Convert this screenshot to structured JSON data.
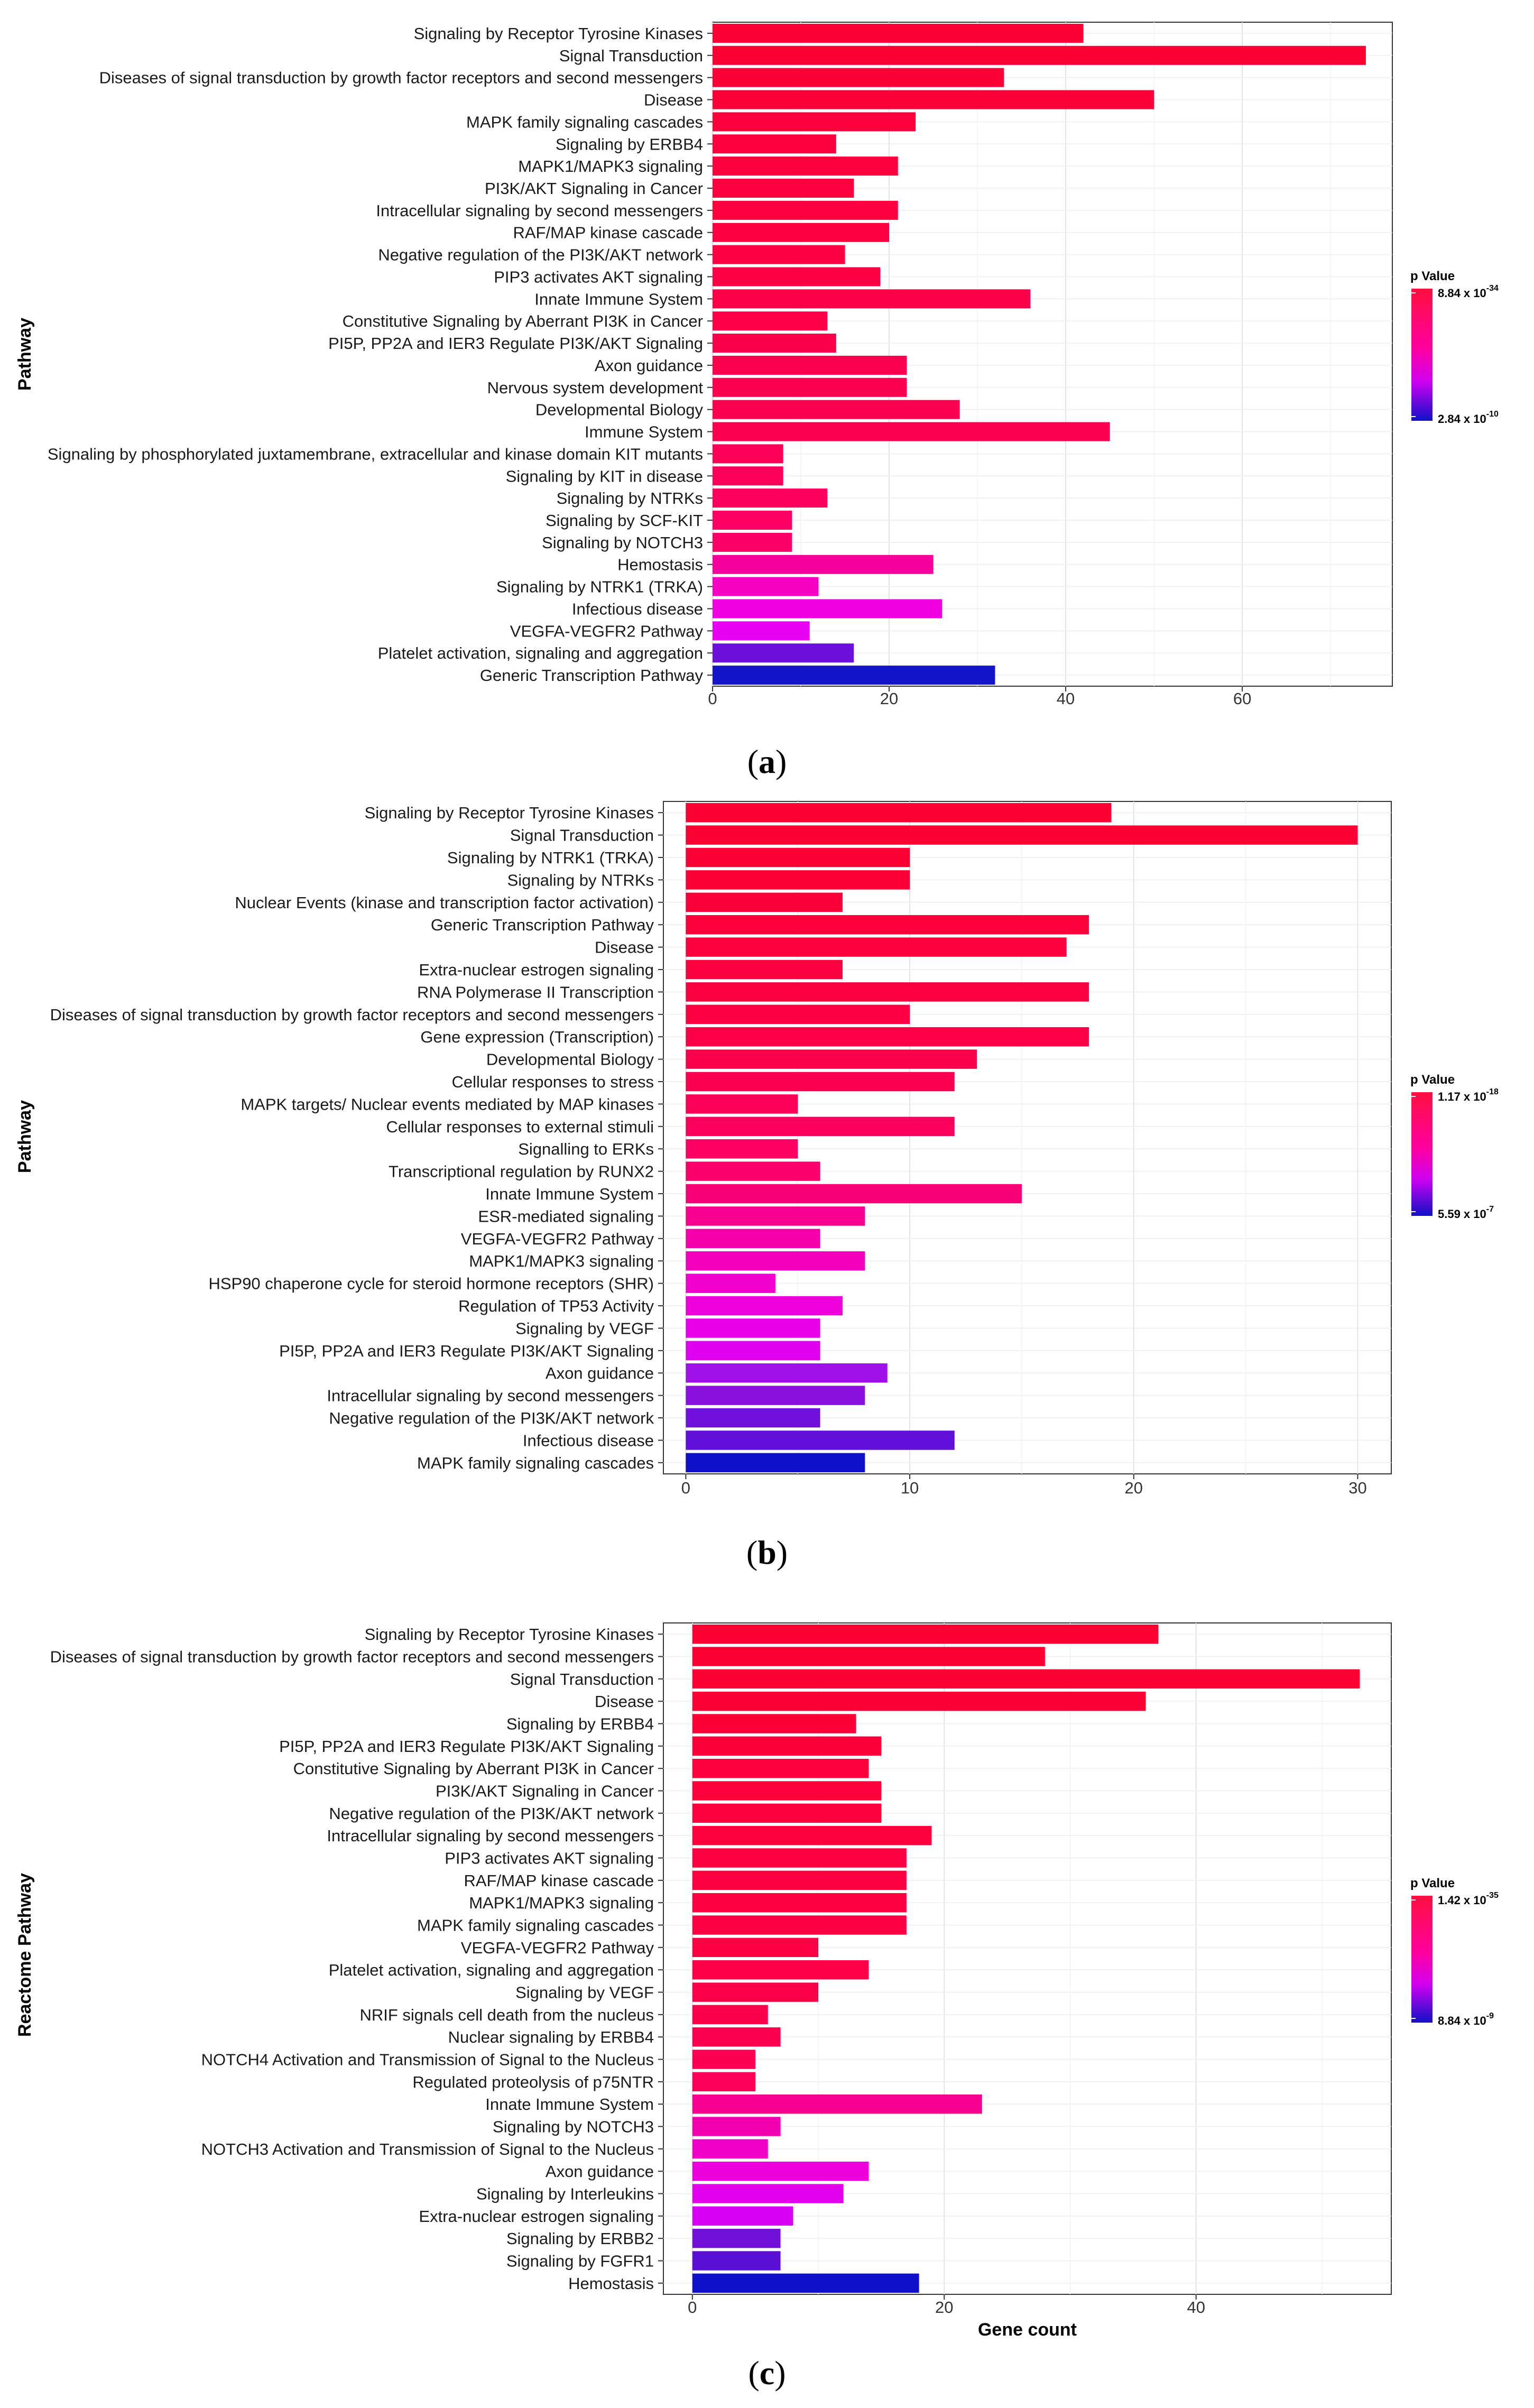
{
  "chart_data": [
    {
      "type": "bar",
      "orientation": "horizontal",
      "panel": "(a)",
      "ylabel": "Pathway",
      "xlabel": "",
      "xlim": [
        0,
        77
      ],
      "xticks": [
        0,
        20,
        40,
        60
      ],
      "legend": {
        "title": "p Value",
        "high_label": "8.84 x 10",
        "high_exp": "-34",
        "low_label": "2.84 x 10",
        "low_exp": "-10"
      },
      "categories": [
        "Signaling by Receptor Tyrosine Kinases",
        "Signal Transduction",
        "Diseases of signal transduction by growth factor receptors and second messengers",
        "Disease",
        "MAPK family signaling cascades",
        "Signaling by ERBB4",
        "MAPK1/MAPK3 signaling",
        "PI3K/AKT Signaling in Cancer",
        "Intracellular signaling by second messengers",
        "RAF/MAP kinase cascade",
        "Negative regulation of the PI3K/AKT network",
        "PIP3 activates AKT signaling",
        "Innate Immune System",
        "Constitutive Signaling by Aberrant PI3K in Cancer",
        "PI5P, PP2A and IER3 Regulate PI3K/AKT Signaling",
        "Axon guidance",
        "Nervous system development",
        "Developmental Biology",
        "Immune System",
        "Signaling by phosphorylated juxtamembrane, extracellular and kinase domain KIT mutants",
        "Signaling by KIT in disease",
        "Signaling by NTRKs",
        "Signaling by SCF-KIT",
        "Signaling by NOTCH3",
        "Hemostasis",
        "Signaling by NTRK1 (TRKA)",
        "Infectious disease",
        "VEGFA-VEGFR2 Pathway",
        "Platelet activation, signaling and aggregation",
        "Generic Transcription Pathway"
      ],
      "values": [
        42,
        74,
        33,
        50,
        23,
        14,
        21,
        16,
        21,
        20,
        15,
        19,
        36,
        13,
        14,
        22,
        22,
        28,
        45,
        8,
        8,
        13,
        9,
        9,
        25,
        12,
        26,
        11,
        16,
        32
      ],
      "colors": [
        "#fb0035",
        "#fb0032",
        "#fb0036",
        "#fb0038",
        "#fb003a",
        "#fb003c",
        "#fb003c",
        "#fb003e",
        "#fb003e",
        "#fb0040",
        "#fb0042",
        "#fb0044",
        "#fb0048",
        "#fb0046",
        "#fb004a",
        "#fb004c",
        "#fb004e",
        "#fb0050",
        "#fb0050",
        "#fb0056",
        "#fb0058",
        "#fb005c",
        "#fb0062",
        "#fb0066",
        "#f5009c",
        "#f500c0",
        "#f000e0",
        "#e800f2",
        "#6a10d8",
        "#1414c8"
      ]
    },
    {
      "type": "bar",
      "orientation": "horizontal",
      "panel": "(b)",
      "ylabel": "Pathway",
      "xlabel": "",
      "xlim": [
        -1,
        31.5
      ],
      "xticks": [
        0,
        10,
        20,
        30
      ],
      "legend": {
        "title": "p Value",
        "high_label": "1.17 x 10",
        "high_exp": "-18",
        "low_label": "5.59 x 10",
        "low_exp": "-7"
      },
      "categories": [
        "Signaling by Receptor Tyrosine Kinases",
        "Signal Transduction",
        "Signaling by NTRK1 (TRKA)",
        "Signaling by NTRKs",
        "Nuclear Events (kinase and transcription factor activation)",
        "Generic Transcription Pathway",
        "Disease",
        "Extra-nuclear estrogen signaling",
        "RNA Polymerase II Transcription",
        "Diseases of signal transduction by growth factor receptors and second messengers",
        "Gene expression (Transcription)",
        "Developmental Biology",
        "Cellular responses to stress",
        "MAPK targets/ Nuclear events mediated by MAP kinases",
        "Cellular responses to external stimuli",
        "Signalling to ERKs",
        "Transcriptional regulation by RUNX2",
        "Innate Immune System",
        "ESR-mediated signaling",
        "VEGFA-VEGFR2 Pathway",
        "MAPK1/MAPK3 signaling",
        "HSP90 chaperone cycle for steroid hormone receptors (SHR)",
        "Regulation of TP53 Activity",
        "Signaling by VEGF",
        "PI5P, PP2A and IER3 Regulate PI3K/AKT Signaling",
        "Axon guidance",
        "Intracellular signaling by second messengers",
        "Negative regulation of the PI3K/AKT network",
        "Infectious disease",
        "MAPK family signaling cascades"
      ],
      "values": [
        19,
        30,
        10,
        10,
        7,
        18,
        17,
        7,
        18,
        10,
        18,
        13,
        12,
        5,
        12,
        5,
        6,
        15,
        8,
        6,
        8,
        4,
        7,
        6,
        6,
        9,
        8,
        6,
        12,
        8
      ],
      "colors": [
        "#fb0030",
        "#fb0032",
        "#fb0034",
        "#fb0036",
        "#fb0038",
        "#fb003a",
        "#fb003c",
        "#fb003e",
        "#fb0040",
        "#fb0042",
        "#fb0046",
        "#fb004a",
        "#fb0050",
        "#fb0056",
        "#fb005a",
        "#fb0062",
        "#fb006c",
        "#f80078",
        "#f80090",
        "#f500a8",
        "#f300bc",
        "#f000cc",
        "#ee00dc",
        "#ea00e8",
        "#e000f0",
        "#a010e8",
        "#8a10e0",
        "#7010dc",
        "#6010d8",
        "#1010c8"
      ]
    },
    {
      "type": "bar",
      "orientation": "horizontal",
      "panel": "(c)",
      "ylabel": "Reactome Pathway",
      "xlabel": "Gene count",
      "xlim": [
        -2.3,
        55.5
      ],
      "xticks": [
        0,
        20,
        40
      ],
      "legend": {
        "title": "p Value",
        "high_label": "1.42 x 10",
        "high_exp": "-35",
        "low_label": "8.84 x 10",
        "low_exp": "-9"
      },
      "categories": [
        "Signaling by Receptor Tyrosine Kinases",
        "Diseases of signal transduction by growth factor receptors and second messengers",
        "Signal Transduction",
        "Disease",
        "Signaling by ERBB4",
        "PI5P, PP2A and IER3 Regulate PI3K/AKT Signaling",
        "Constitutive Signaling by Aberrant PI3K in Cancer",
        "PI3K/AKT Signaling in Cancer",
        "Negative regulation of the PI3K/AKT network",
        "Intracellular signaling by second messengers",
        "PIP3 activates AKT signaling",
        "RAF/MAP kinase cascade",
        "MAPK1/MAPK3 signaling",
        "MAPK family signaling cascades",
        "VEGFA-VEGFR2 Pathway",
        "Platelet activation, signaling and aggregation",
        "Signaling by VEGF",
        "NRIF signals cell death from the nucleus",
        "Nuclear signaling by ERBB4",
        "NOTCH4 Activation and Transmission of Signal to the Nucleus",
        "Regulated proteolysis of p75NTR",
        "Innate Immune System",
        "Signaling by NOTCH3",
        "NOTCH3 Activation and Transmission of Signal to the Nucleus",
        "Axon guidance",
        "Signaling by Interleukins",
        "Extra-nuclear estrogen signaling",
        "Signaling by ERBB2",
        "Signaling by FGFR1",
        "Hemostasis"
      ],
      "values": [
        37,
        28,
        53,
        36,
        13,
        15,
        14,
        15,
        15,
        19,
        17,
        17,
        17,
        17,
        10,
        14,
        10,
        6,
        7,
        5,
        5,
        23,
        7,
        6,
        14,
        12,
        8,
        7,
        7,
        18
      ],
      "colors": [
        "#fb0030",
        "#fb0032",
        "#fb0032",
        "#fb0034",
        "#fb0036",
        "#fb0038",
        "#fb003a",
        "#fb003a",
        "#fb003c",
        "#fb003c",
        "#fb003e",
        "#fb0040",
        "#fb0040",
        "#fb0042",
        "#fb0044",
        "#fb0046",
        "#fb0048",
        "#fb004a",
        "#fb004e",
        "#fb0052",
        "#fb0056",
        "#f70090",
        "#f300b0",
        "#f000c6",
        "#ec00dc",
        "#e200ec",
        "#d800f4",
        "#7010d8",
        "#5a10d4",
        "#1010c8"
      ]
    }
  ]
}
